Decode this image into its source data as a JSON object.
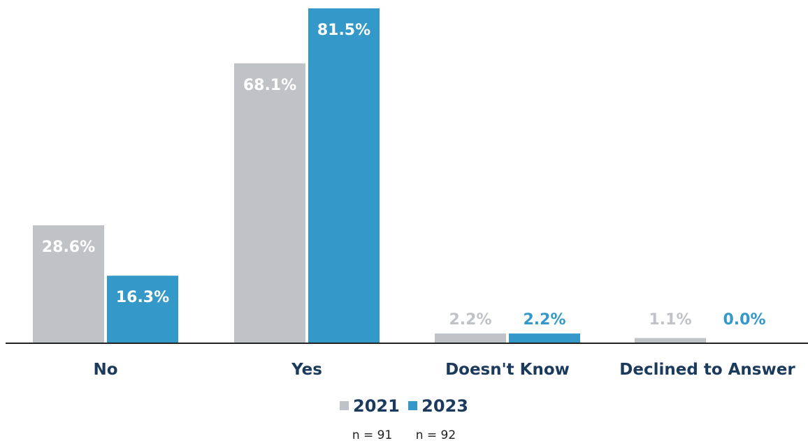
{
  "colors": {
    "s2021": "#bfc2c7",
    "s2023": "#3499c8",
    "axis_text": "#1b3a5c",
    "bar_label_light": "#ffffff"
  },
  "chart_data": {
    "type": "bar",
    "categories": [
      "No",
      "Yes",
      "Doesn't Know",
      "Declined to Answer"
    ],
    "series": [
      {
        "name": "2021",
        "values": [
          28.6,
          68.1,
          2.2,
          1.1
        ],
        "labels": [
          "28.6%",
          "68.1%",
          "2.2%",
          "1.1%"
        ]
      },
      {
        "name": "2023",
        "values": [
          16.3,
          81.5,
          2.2,
          0.0
        ],
        "labels": [
          "16.3%",
          "81.5%",
          "2.2%",
          "0.0%"
        ]
      }
    ],
    "ylim": [
      0,
      82
    ],
    "grid": false,
    "legend": "bottom-center",
    "sample_sizes": [
      "n = 91",
      "n = 92"
    ]
  }
}
